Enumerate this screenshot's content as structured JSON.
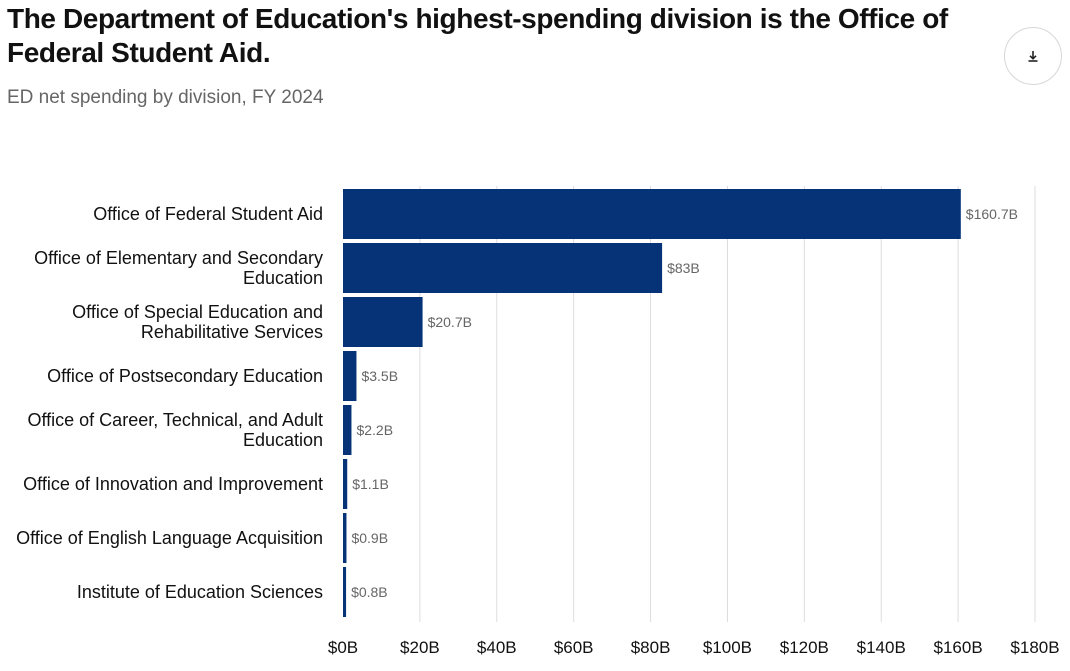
{
  "header": {
    "title": "The Department of Education's highest-spending division is the Office of Federal Student Aid.",
    "subtitle": "ED net spending by division, FY 2024"
  },
  "toolbar": {
    "download_icon": "download-icon"
  },
  "colors": {
    "bar": "#063377",
    "grid": "#dddddd",
    "category_text": "#111111",
    "value_text": "#666666",
    "axis_text": "#111111"
  },
  "chart_data": {
    "type": "bar",
    "orientation": "horizontal",
    "title": "The Department of Education's highest-spending division is the Office of Federal Student Aid.",
    "subtitle": "ED net spending by division, FY 2024",
    "xlabel": "",
    "ylabel": "",
    "xlim": [
      0,
      180
    ],
    "grid": true,
    "categories": [
      [
        "Office of Federal Student Aid"
      ],
      [
        "Office of Elementary and Secondary",
        "Education"
      ],
      [
        "Office of Special Education and",
        "Rehabilitative Services"
      ],
      [
        "Office of Postsecondary Education"
      ],
      [
        "Office of Career, Technical, and Adult",
        "Education"
      ],
      [
        "Office of Innovation and Improvement"
      ],
      [
        "Office of English Language Acquisition"
      ],
      [
        "Institute of Education Sciences"
      ]
    ],
    "values": [
      160.7,
      83,
      20.7,
      3.5,
      2.2,
      1.1,
      0.9,
      0.8
    ],
    "value_labels": [
      "$160.7B",
      "$83B",
      "$20.7B",
      "$3.5B",
      "$2.2B",
      "$1.1B",
      "$0.9B",
      "$0.8B"
    ],
    "ticks": [
      0,
      20,
      40,
      60,
      80,
      100,
      120,
      140,
      160,
      180
    ],
    "tick_labels": [
      "$0B",
      "$20B",
      "$40B",
      "$60B",
      "$80B",
      "$100B",
      "$120B",
      "$140B",
      "$160B",
      "$180B"
    ]
  }
}
